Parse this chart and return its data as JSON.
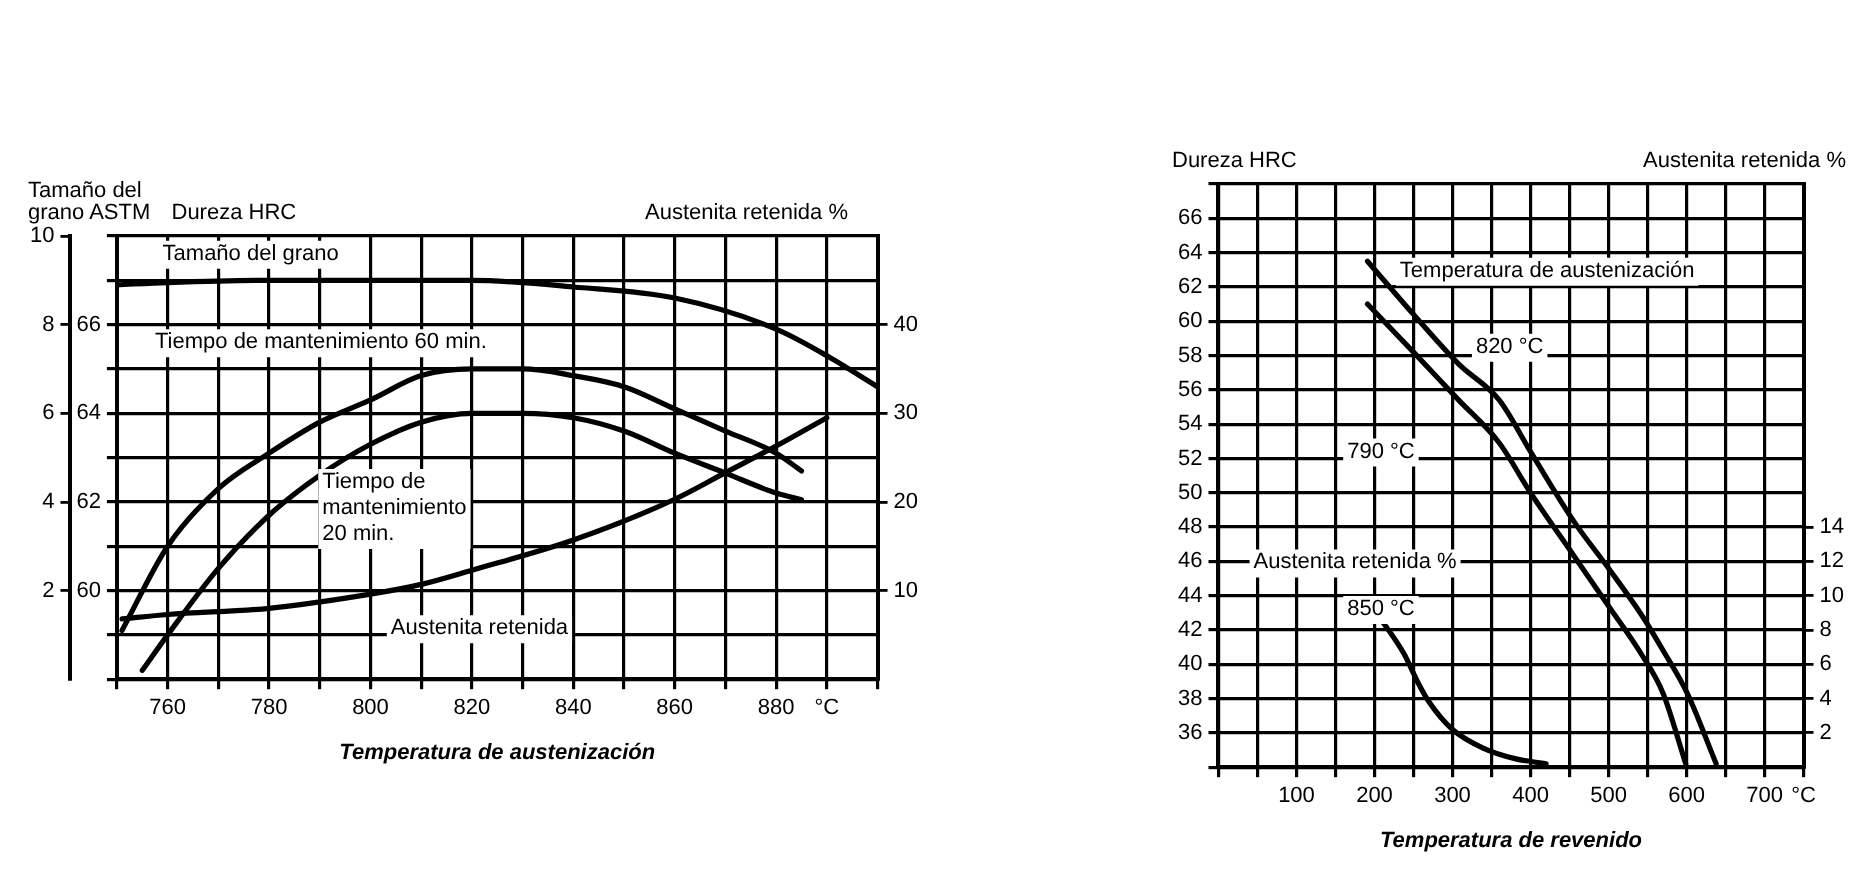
{
  "chart_data": [
    {
      "type": "line",
      "ylabel": "Dureza HRC",
      "y2label": "Austenita retenida %",
      "y3label": "Tamaño del grano ASTM",
      "xlabel": "Temperatura de austenización",
      "grid": true,
      "legend": false,
      "marker": "none",
      "line_style": "solid",
      "xlim": [
        750,
        900
      ],
      "xticks": [
        {
          "value": 750,
          "label": null
        },
        760,
        {
          "value": 770,
          "label": null
        },
        780,
        {
          "value": 790,
          "label": null
        },
        800,
        {
          "value": 810,
          "label": null
        },
        820,
        {
          "value": 830,
          "label": null
        },
        840,
        {
          "value": 850,
          "label": null
        },
        860,
        {
          "value": 870,
          "label": null
        },
        880,
        {
          "value": 890,
          "label": "°C"
        },
        {
          "value": 900,
          "label": null
        }
      ],
      "ylim": [
        58,
        68
      ],
      "yticks": [
        {
          "value": 58,
          "label": null
        },
        {
          "value": 59,
          "label": null
        },
        60,
        {
          "value": 61,
          "label": null
        },
        62,
        {
          "value": 63,
          "label": null
        },
        64,
        {
          "value": 65,
          "label": null
        },
        66,
        {
          "value": 67,
          "label": null
        },
        {
          "value": 68,
          "label": null
        }
      ],
      "y2lim": [
        0,
        50
      ],
      "y2ticks": [
        10,
        20,
        30,
        40
      ],
      "y3lim": [
        0,
        10
      ],
      "y3ticks": [
        2,
        4,
        6,
        8,
        10
      ],
      "series": [
        {
          "name": "Tamaño del grano",
          "color": "#000000",
          "axis": "y3",
          "x": [
            750,
            760,
            780,
            800,
            820,
            840,
            860,
            880,
            890,
            900
          ],
          "values": [
            8.9,
            8.95,
            9,
            9,
            9,
            8.85,
            8.6,
            7.9,
            7.3,
            6.6
          ]
        },
        {
          "name": "Tiempo de mantenimiento 60 min.",
          "color": "#000000",
          "x": [
            751,
            760,
            770,
            780,
            790,
            800,
            810,
            820,
            830,
            840,
            850,
            860,
            870,
            880,
            885
          ],
          "values": [
            59.1,
            61.0,
            62.3,
            63.1,
            63.8,
            64.3,
            64.85,
            65.0,
            65.0,
            64.85,
            64.6,
            64.1,
            63.6,
            63.1,
            62.7
          ]
        },
        {
          "name": "Tiempo de mantenimiento 20 min.",
          "color": "#000000",
          "x": [
            755,
            760,
            770,
            780,
            790,
            800,
            810,
            820,
            830,
            840,
            850,
            860,
            870,
            880,
            885
          ],
          "values": [
            58.2,
            59.0,
            60.5,
            61.7,
            62.6,
            63.3,
            63.8,
            64.0,
            64.0,
            63.9,
            63.6,
            63.1,
            62.65,
            62.2,
            62.05
          ]
        },
        {
          "name": "Austenita retenida",
          "color": "#000000",
          "axis": "y2",
          "x": [
            751,
            760,
            780,
            800,
            810,
            820,
            840,
            860,
            870,
            880,
            890
          ],
          "values": [
            6.8,
            7.3,
            8.0,
            9.6,
            10.7,
            12.3,
            15.7,
            20.3,
            23.3,
            26.3,
            29.5
          ]
        }
      ]
    },
    {
      "type": "line",
      "ylabel": "Dureza HRC",
      "y2label": "Austenita retenida %",
      "xlabel": "Temperatura de revenido",
      "legend_title": "Temperatura de austenización",
      "annotations": [
        "Austenita retenida %"
      ],
      "grid": true,
      "legend": false,
      "marker": "none",
      "line_style": "solid",
      "xlim": [
        0,
        750
      ],
      "xticks": [
        {
          "value": 0,
          "label": null
        },
        {
          "value": 50,
          "label": null
        },
        100,
        {
          "value": 150,
          "label": null
        },
        200,
        {
          "value": 250,
          "label": null
        },
        300,
        {
          "value": 350,
          "label": null
        },
        400,
        {
          "value": 450,
          "label": null
        },
        500,
        {
          "value": 550,
          "label": null
        },
        600,
        {
          "value": 650,
          "label": null
        },
        700,
        {
          "value": 750,
          "label": "°C"
        }
      ],
      "ylim": [
        34,
        68
      ],
      "yticks": [
        {
          "value": 34,
          "label": null
        },
        36,
        38,
        40,
        42,
        44,
        46,
        48,
        50,
        52,
        54,
        56,
        58,
        60,
        62,
        64,
        66,
        {
          "value": 68,
          "label": null
        }
      ],
      "y2lim": [
        0,
        34
      ],
      "y2ticks": [
        2,
        4,
        6,
        8,
        10,
        12,
        14
      ],
      "series": [
        {
          "name": "820 °C",
          "color": "#000000",
          "x": [
            191,
            250,
            308,
            360,
            400,
            456,
            500,
            542,
            570,
            601,
            638
          ],
          "values": [
            63.5,
            60.4,
            57.5,
            55.4,
            52.4,
            48.3,
            45.6,
            42.9,
            40.8,
            38.3,
            34.2
          ]
        },
        {
          "name": "790 °C",
          "color": "#000000",
          "x": [
            191,
            250,
            308,
            360,
            400,
            456,
            500,
            542,
            570,
            599
          ],
          "values": [
            61.0,
            58.2,
            55.4,
            52.9,
            50.0,
            46.3,
            43.4,
            40.6,
            38.3,
            34.2
          ]
        },
        {
          "name": "850 °C",
          "color": "#000000",
          "axis": "y2",
          "x": [
            186,
            210,
            238,
            255,
            270,
            300,
            340,
            380,
            420
          ],
          "values": [
            9.9,
            8.5,
            6.6,
            5.0,
            3.8,
            2.2,
            1.1,
            0.5,
            0.2
          ]
        }
      ]
    }
  ]
}
